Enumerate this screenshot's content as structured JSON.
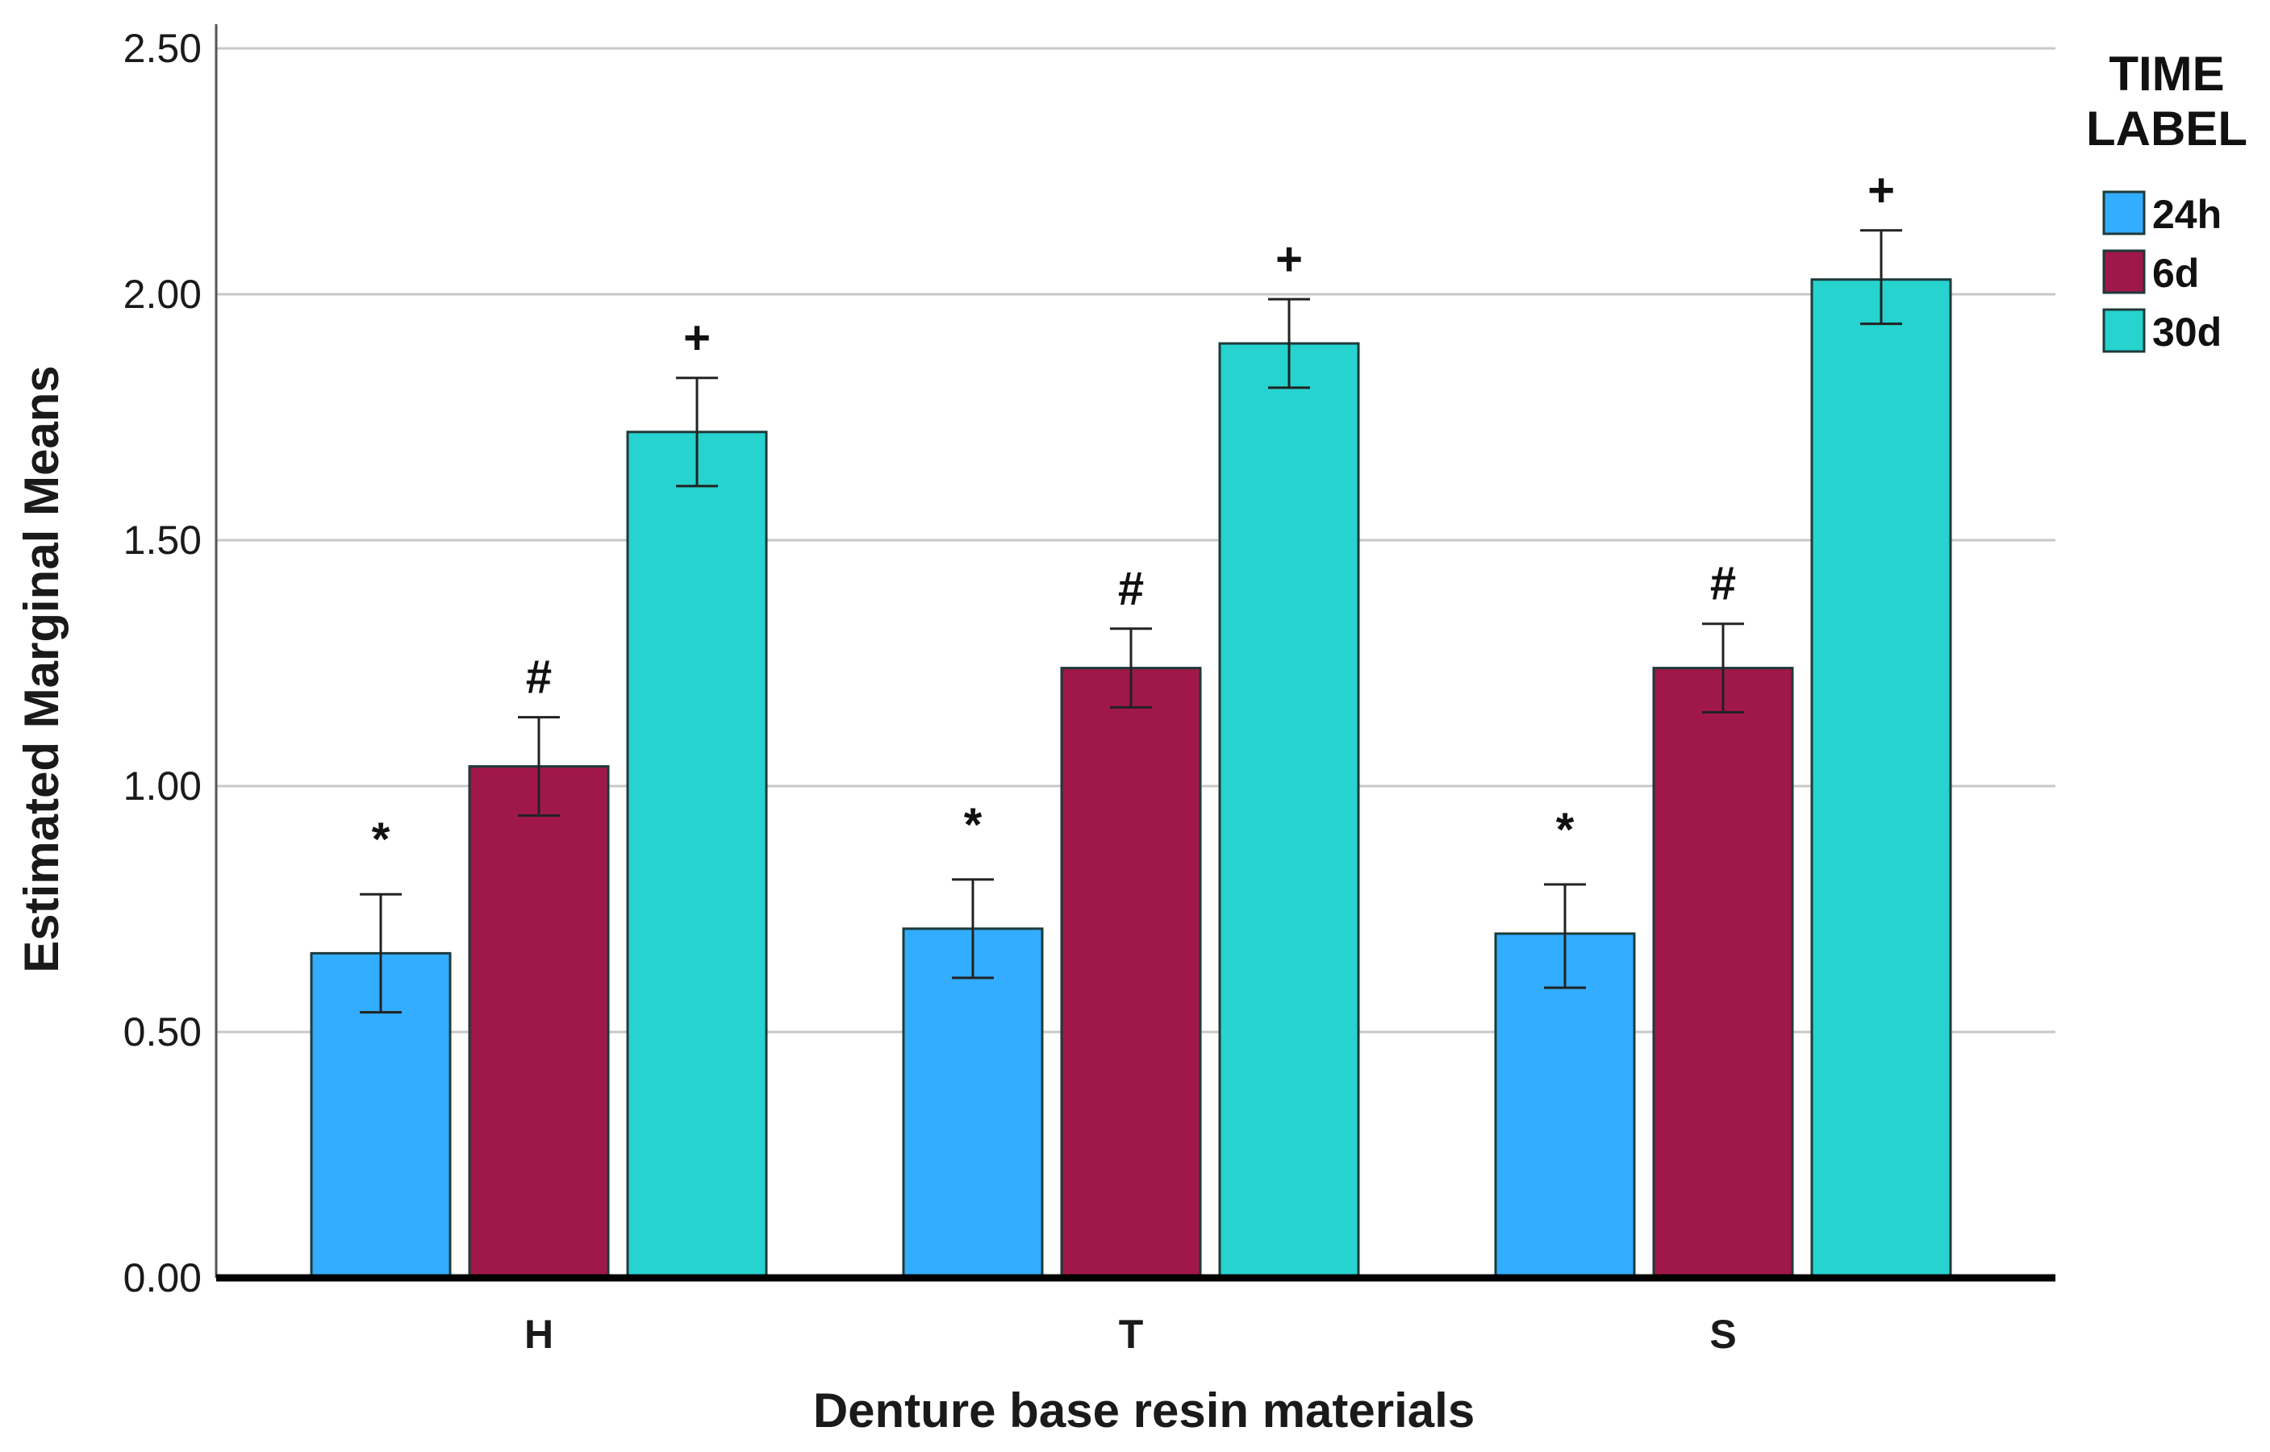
{
  "chart_data": {
    "type": "bar",
    "title": "",
    "xlabel": "Denture base resin materials",
    "ylabel": "Estimated Marginal Means",
    "ylim": [
      0,
      2.5
    ],
    "yticks": [
      "0.00",
      "0.50",
      "1.00",
      "1.50",
      "2.00",
      "2.50"
    ],
    "grid": true,
    "categories": [
      "H",
      "T",
      "S"
    ],
    "legend_title": [
      "TIME",
      "LABEL"
    ],
    "legend_position": "top-right",
    "series": [
      {
        "name": "24h",
        "color": "#33adff",
        "values": [
          0.66,
          0.71,
          0.7
        ],
        "err_low": [
          0.54,
          0.61,
          0.59
        ],
        "err_high": [
          0.78,
          0.81,
          0.8
        ],
        "markers": [
          "*",
          "*",
          "*"
        ]
      },
      {
        "name": "6d",
        "color": "#a0174a",
        "values": [
          1.04,
          1.24,
          1.24
        ],
        "err_low": [
          0.94,
          1.16,
          1.15
        ],
        "err_high": [
          1.14,
          1.32,
          1.33
        ],
        "markers": [
          "#",
          "#",
          "#"
        ]
      },
      {
        "name": "30d",
        "color": "#26d3cf",
        "values": [
          1.72,
          1.9,
          2.03
        ],
        "err_low": [
          1.61,
          1.81,
          1.94
        ],
        "err_high": [
          1.83,
          1.99,
          2.13
        ],
        "markers": [
          "+",
          "+",
          "+"
        ]
      }
    ]
  }
}
